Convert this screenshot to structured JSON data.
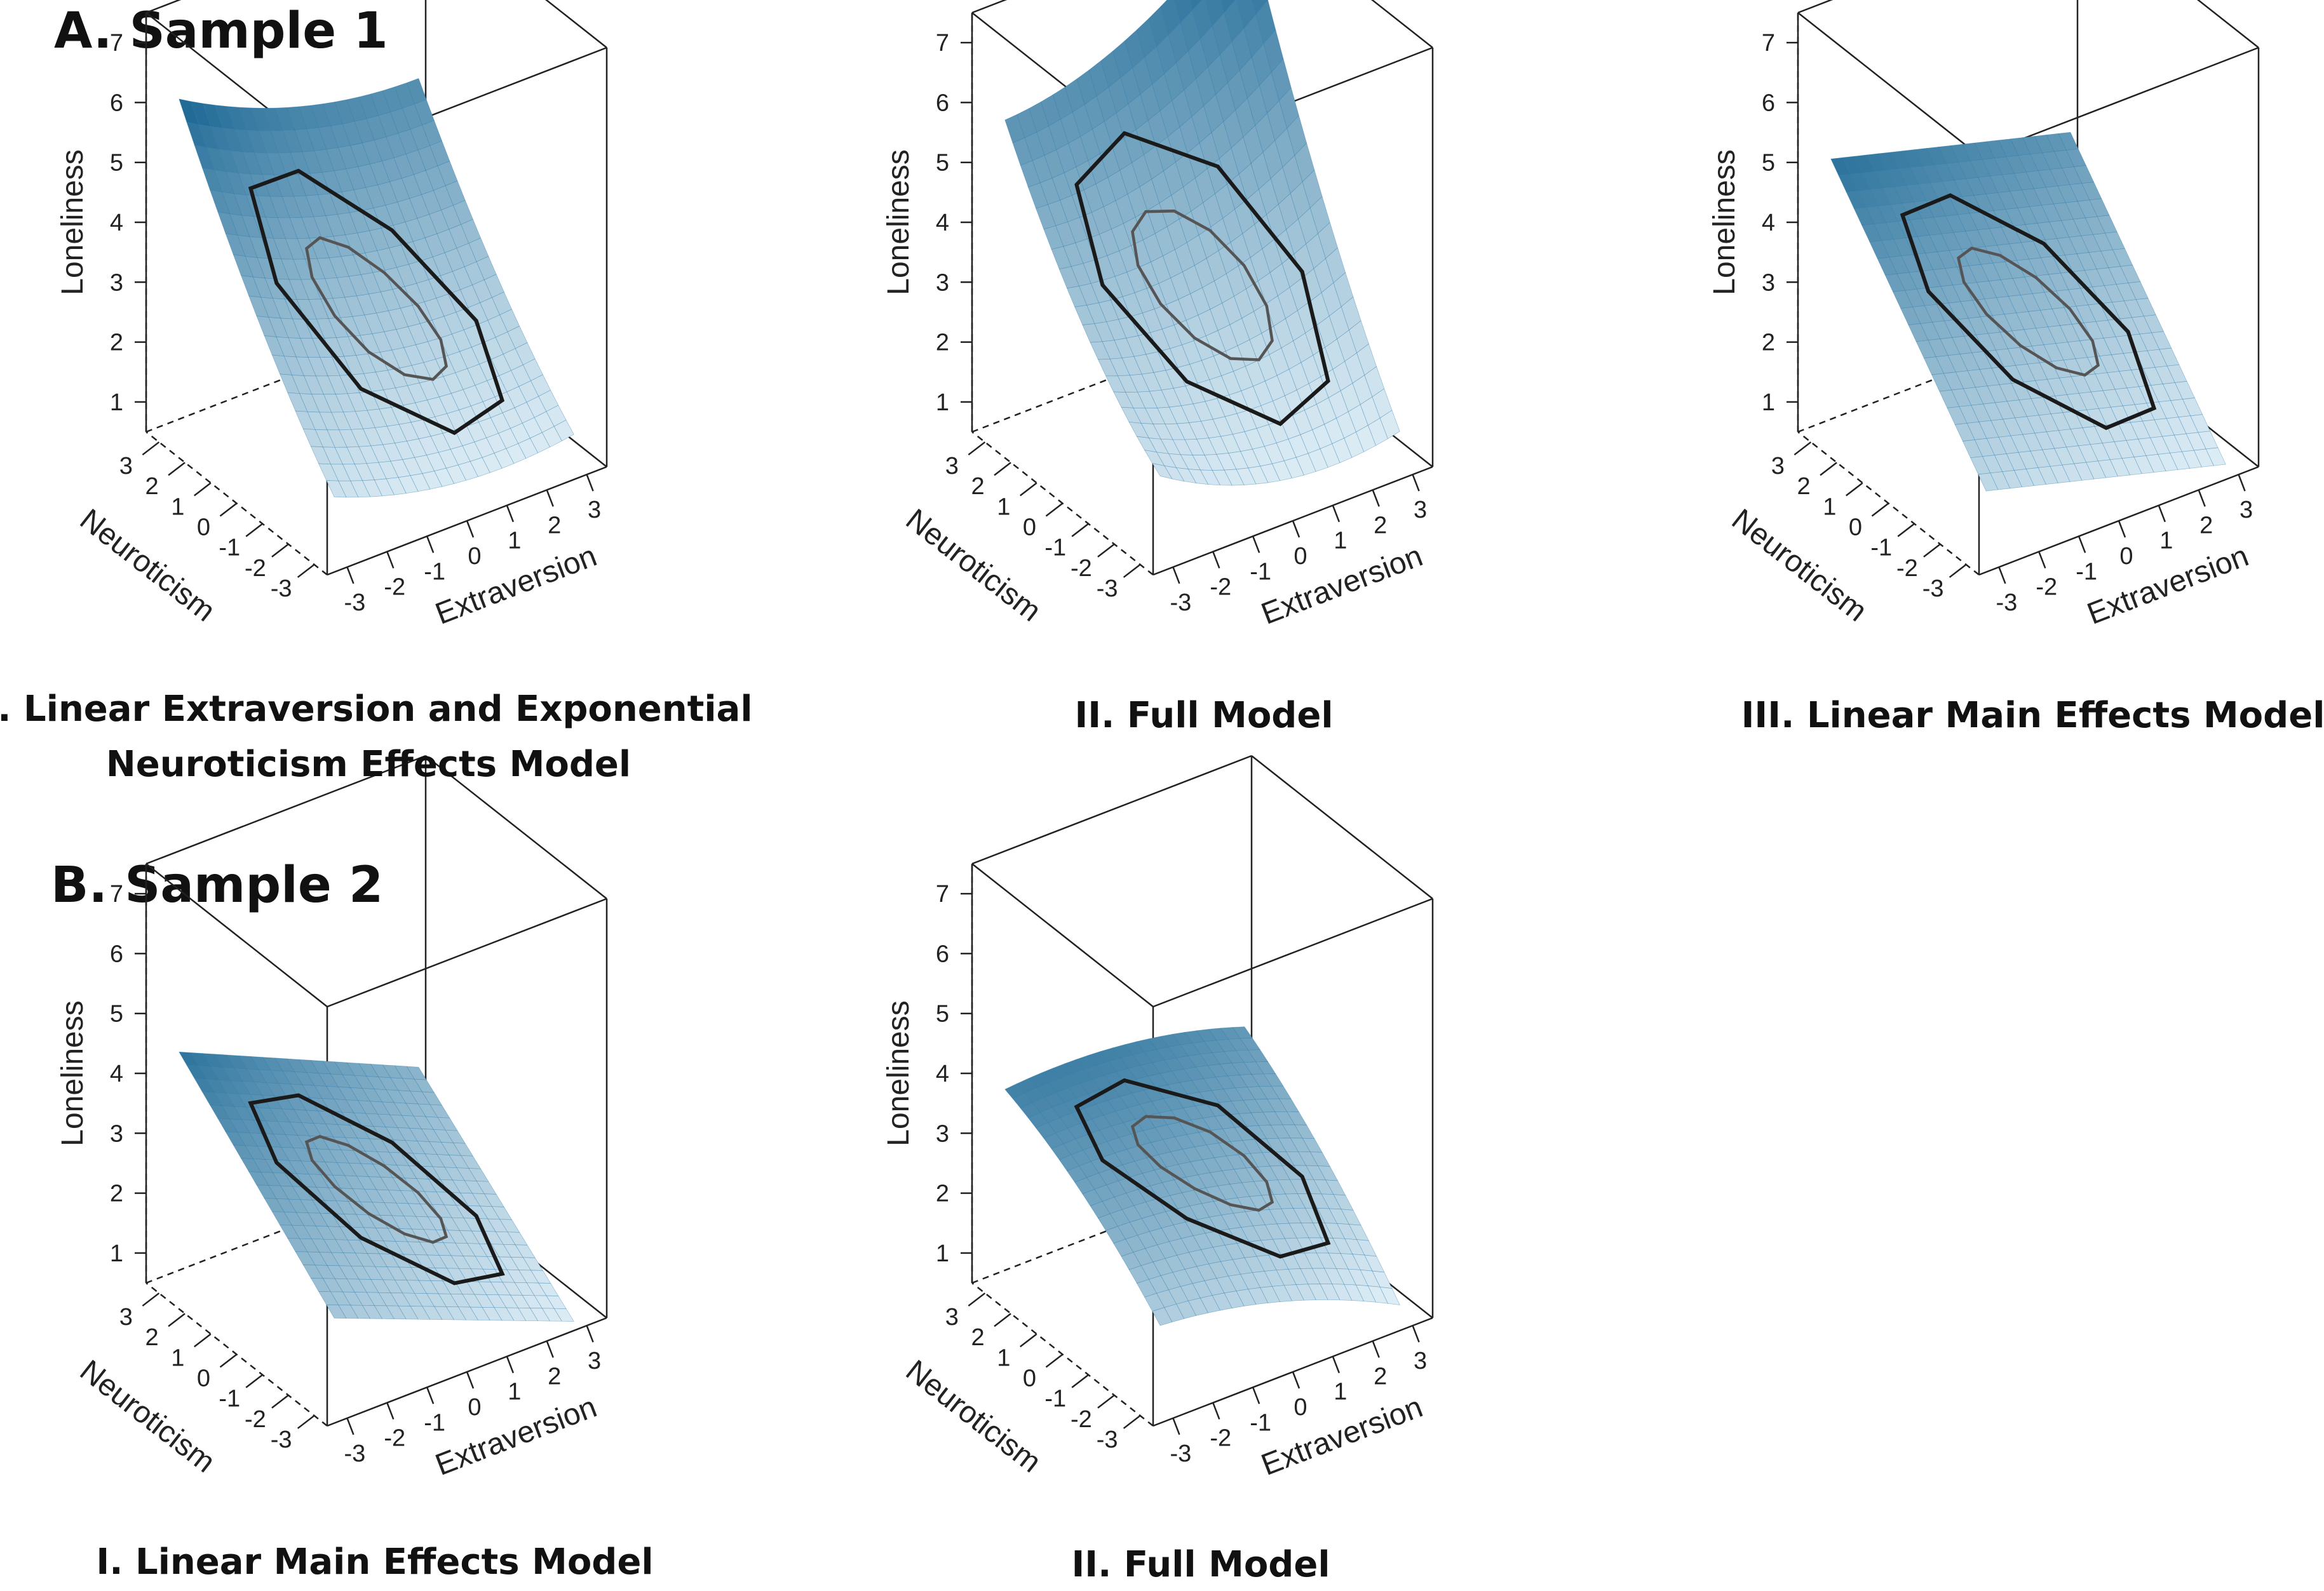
{
  "sections": [
    {
      "title": "A. Sample 1",
      "panels": [
        {
          "title_lines": [
            "I. Linear Extraversion and Exponential",
            "Neuroticism Effects Model"
          ]
        },
        {
          "title_lines": [
            "II. Full Model"
          ]
        },
        {
          "title_lines": [
            "III. Linear Main Effects Model"
          ]
        }
      ]
    },
    {
      "title": "B. Sample 2",
      "panels": [
        {
          "title_lines": [
            "I. Linear Main Effects Model"
          ]
        },
        {
          "title_lines": [
            "II. Full Model"
          ]
        }
      ]
    }
  ],
  "chart_data": [
    {
      "type": "surface3d",
      "sample": "A. Sample 1",
      "title": "I. Linear Extraversion and Exponential Neuroticism Effects Model",
      "xlabel": "Extraversion",
      "ylabel": "Neuroticism",
      "zlabel": "Loneliness",
      "x_ticks": [
        -3,
        -2,
        -1,
        0,
        1,
        2,
        3
      ],
      "y_ticks": [
        -3,
        -2,
        -1,
        0,
        1,
        2,
        3
      ],
      "z_ticks": [
        1,
        2,
        3,
        4,
        5,
        6,
        7
      ],
      "xlim": [
        -3.5,
        3.5
      ],
      "ylim": [
        -3.5,
        3.5
      ],
      "zlim": [
        0.5,
        7.5
      ],
      "surface_corners": {
        "E-3_N3": 5.8,
        "E3_N3": 4.6,
        "E-3_N-3": 1.2,
        "E3_N-3": 0.7
      },
      "curvature": 0.4
    },
    {
      "type": "surface3d",
      "sample": "A. Sample 1",
      "title": "II. Full Model",
      "xlabel": "Extraversion",
      "ylabel": "Neuroticism",
      "zlabel": "Loneliness",
      "x_ticks": [
        -3,
        -2,
        -1,
        0,
        1,
        2,
        3
      ],
      "y_ticks": [
        -3,
        -2,
        -1,
        0,
        1,
        2,
        3
      ],
      "z_ticks": [
        1,
        2,
        3,
        4,
        5,
        6,
        7
      ],
      "xlim": [
        -3.5,
        3.5
      ],
      "ylim": [
        -3.5,
        3.5
      ],
      "zlim": [
        0.5,
        7.5
      ],
      "surface_corners": {
        "E-3_N3": 5.3,
        "E3_N3": 7.3,
        "E-3_N-3": 1.4,
        "E3_N-3": 0.6
      },
      "curvature": 0.6
    },
    {
      "type": "surface3d",
      "sample": "A. Sample 1",
      "title": "III. Linear Main Effects Model",
      "xlabel": "Extraversion",
      "ylabel": "Neuroticism",
      "zlabel": "Loneliness",
      "x_ticks": [
        -3,
        -2,
        -1,
        0,
        1,
        2,
        3
      ],
      "y_ticks": [
        -3,
        -2,
        -1,
        0,
        1,
        2,
        3
      ],
      "z_ticks": [
        1,
        2,
        3,
        4,
        5,
        6,
        7
      ],
      "xlim": [
        -3.5,
        3.5
      ],
      "ylim": [
        -3.5,
        3.5
      ],
      "zlim": [
        0.5,
        7.5
      ],
      "surface_corners": {
        "E-3_N3": 5.1,
        "E3_N3": 4.0,
        "E-3_N-3": 1.6,
        "E3_N-3": 0.5
      },
      "curvature": 0
    },
    {
      "type": "surface3d",
      "sample": "B. Sample 2",
      "title": "I. Linear Main Effects Model",
      "xlabel": "Extraversion",
      "ylabel": "Neuroticism",
      "zlabel": "Loneliness",
      "x_ticks": [
        -3,
        -2,
        -1,
        0,
        1,
        2,
        3
      ],
      "y_ticks": [
        -3,
        -2,
        -1,
        0,
        1,
        2,
        3
      ],
      "z_ticks": [
        1,
        2,
        3,
        4,
        5,
        6,
        7
      ],
      "xlim": [
        -3.5,
        3.5
      ],
      "ylim": [
        -3.5,
        3.5
      ],
      "zlim": [
        0.5,
        7.5
      ],
      "surface_corners": {
        "E-3_N3": 4.4,
        "E3_N3": 2.6,
        "E-3_N-3": 2.0,
        "E3_N-3": 0.4
      },
      "curvature": 0
    },
    {
      "type": "surface3d",
      "sample": "B. Sample 2",
      "title": "II. Full Model",
      "xlabel": "Extraversion",
      "ylabel": "Neuroticism",
      "zlabel": "Loneliness",
      "x_ticks": [
        -3,
        -2,
        -1,
        0,
        1,
        2,
        3
      ],
      "y_ticks": [
        -3,
        -2,
        -1,
        0,
        1,
        2,
        3
      ],
      "z_ticks": [
        1,
        2,
        3,
        4,
        5,
        6,
        7
      ],
      "xlim": [
        -3.5,
        3.5
      ],
      "ylim": [
        -3.5,
        3.5
      ],
      "zlim": [
        0.5,
        7.5
      ],
      "surface_corners": {
        "E-3_N3": 4.0,
        "E3_N3": 3.5,
        "E-3_N-3": 2.1,
        "E3_N-3": 0.9
      },
      "curvature": -0.3
    }
  ],
  "colors": {
    "surface_light": "#e6f3fa",
    "surface_dark": "#0d5d8c",
    "grid_line": "#2a77a8",
    "hull_outer": "#1a1a1a",
    "hull_inner": "#555555",
    "box": "#222222"
  }
}
